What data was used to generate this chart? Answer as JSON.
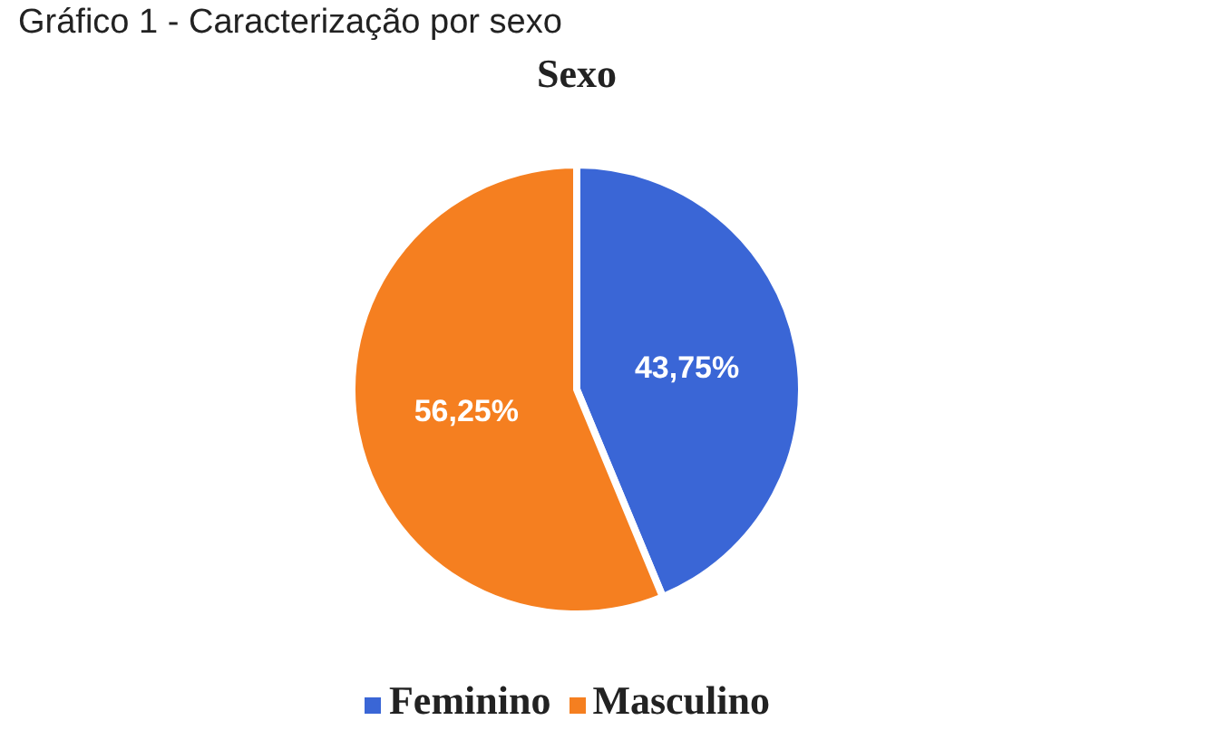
{
  "chart_data": {
    "type": "pie",
    "title": "Sexo",
    "annotations": [
      "Gráfico 1 - Caracterização por sexo"
    ],
    "categories": [
      "Feminino",
      "Masculino"
    ],
    "values": [
      43.75,
      56.25
    ],
    "colors": [
      "#3a66d6",
      "#f57f20"
    ],
    "value_labels": [
      "43,75%",
      "56,25%"
    ],
    "legend": "bottom"
  }
}
